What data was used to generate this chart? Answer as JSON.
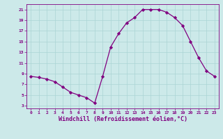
{
  "x": [
    0,
    1,
    2,
    3,
    4,
    5,
    6,
    7,
    8,
    9,
    10,
    11,
    12,
    13,
    14,
    15,
    16,
    17,
    18,
    19,
    20,
    21,
    22,
    23
  ],
  "y": [
    8.5,
    8.3,
    8.0,
    7.5,
    6.5,
    5.5,
    5.0,
    4.5,
    3.5,
    8.5,
    14.0,
    16.5,
    18.5,
    19.5,
    21.0,
    21.0,
    21.0,
    20.5,
    19.5,
    18.0,
    15.0,
    12.0,
    9.5,
    8.5
  ],
  "line_color": "#800080",
  "marker": "D",
  "markersize": 2.2,
  "linewidth": 0.9,
  "xlabel": "Windchill (Refroidissement éolien,°C)",
  "xlabel_fontsize": 6.0,
  "xlim": [
    -0.5,
    23.5
  ],
  "ylim": [
    2.5,
    22.0
  ],
  "yticks": [
    3,
    5,
    7,
    9,
    11,
    13,
    15,
    17,
    19,
    21
  ],
  "xticks": [
    0,
    1,
    2,
    3,
    4,
    5,
    6,
    7,
    8,
    9,
    10,
    11,
    12,
    13,
    14,
    15,
    16,
    17,
    18,
    19,
    20,
    21,
    22,
    23
  ],
  "bg_color": "#cce9e9",
  "grid_color": "#aad4d4",
  "tick_color": "#800080",
  "axis_color": "#800080"
}
